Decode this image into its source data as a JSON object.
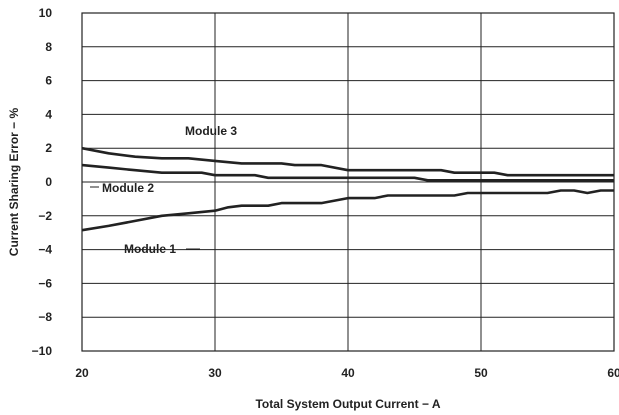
{
  "chart_data": {
    "type": "line",
    "title": "",
    "xlabel": "Total System Output Current − A",
    "ylabel": "Current Sharing Error − %",
    "xlim": [
      20,
      60
    ],
    "ylim": [
      -10,
      10
    ],
    "xticks": [
      20,
      30,
      40,
      50,
      60
    ],
    "yticks": [
      10,
      8,
      6,
      4,
      2,
      0,
      -2,
      -4,
      -6,
      -8,
      -10
    ],
    "ytick_labels": [
      "10",
      "8",
      "6",
      "4",
      "2",
      "0",
      "−2",
      "−4",
      "−6",
      "−8",
      "−10"
    ],
    "grid": true,
    "series": [
      {
        "name": "Module 3",
        "x": [
          20,
          22,
          24,
          26,
          28,
          30,
          32,
          34,
          35,
          36,
          38,
          40,
          42,
          44,
          46,
          47,
          48,
          50,
          51,
          52,
          54,
          56,
          58,
          60
        ],
        "y": [
          2.0,
          1.7,
          1.5,
          1.4,
          1.4,
          1.25,
          1.1,
          1.1,
          1.1,
          1.0,
          1.0,
          0.7,
          0.7,
          0.7,
          0.7,
          0.7,
          0.55,
          0.55,
          0.55,
          0.4,
          0.4,
          0.4,
          0.4,
          0.4
        ]
      },
      {
        "name": "Module 2",
        "x": [
          20,
          22,
          24,
          26,
          28,
          29,
          30,
          32,
          33,
          34,
          36,
          38,
          40,
          42,
          44,
          45,
          46,
          48,
          50,
          52,
          54,
          56,
          58,
          60
        ],
        "y": [
          1.0,
          0.85,
          0.7,
          0.55,
          0.55,
          0.55,
          0.4,
          0.4,
          0.4,
          0.25,
          0.25,
          0.25,
          0.25,
          0.25,
          0.25,
          0.25,
          0.1,
          0.1,
          0.1,
          0.1,
          0.1,
          0.1,
          0.1,
          0.1
        ]
      },
      {
        "name": "Module 1",
        "x": [
          20,
          22,
          24,
          26,
          28,
          30,
          31,
          32,
          34,
          35,
          36,
          38,
          40,
          42,
          43,
          44,
          46,
          48,
          49,
          50,
          52,
          54,
          55,
          56,
          57,
          58,
          59,
          60
        ],
        "y": [
          -2.85,
          -2.6,
          -2.3,
          -2.0,
          -1.85,
          -1.7,
          -1.5,
          -1.4,
          -1.4,
          -1.25,
          -1.25,
          -1.25,
          -0.95,
          -0.95,
          -0.8,
          -0.8,
          -0.8,
          -0.8,
          -0.65,
          -0.65,
          -0.65,
          -0.65,
          -0.65,
          -0.5,
          -0.5,
          -0.65,
          -0.5,
          -0.5
        ]
      }
    ],
    "annotations": [
      "Module 3",
      "Module 2",
      "Module 1"
    ]
  }
}
